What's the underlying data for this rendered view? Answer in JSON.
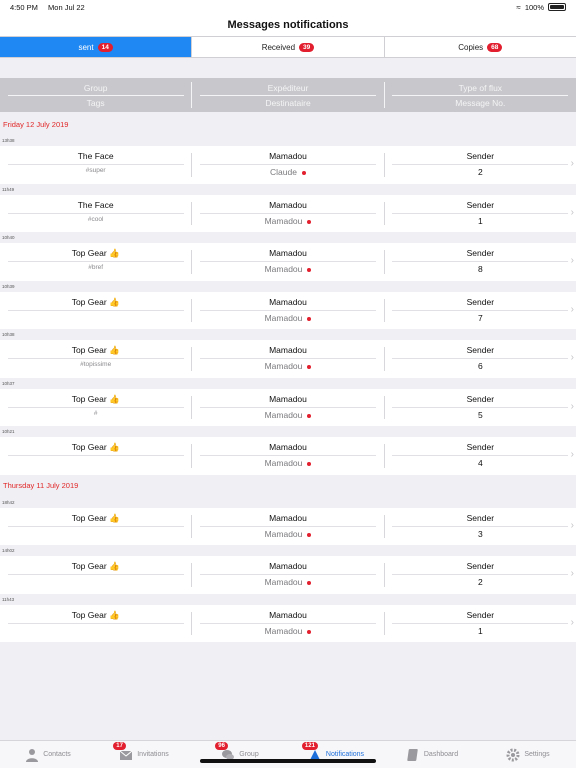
{
  "status": {
    "time": "4:50 PM",
    "date": "Mon Jul 22",
    "battery": "100%"
  },
  "title": "Messages notifications",
  "segments": [
    {
      "label": "sent",
      "count": "14"
    },
    {
      "label": "Received",
      "count": "39"
    },
    {
      "label": "Copies",
      "count": "68"
    }
  ],
  "header": {
    "col1_top": "Group",
    "col1_bottom": "Tags",
    "col2_top": "Expéditeur",
    "col2_bottom": "Destinataire",
    "col3_top": "Type of flux",
    "col3_bottom": "Message No."
  },
  "sections": [
    {
      "date": "Friday 12 July 2019",
      "rows": [
        {
          "time": "13h38",
          "group": "The Face",
          "tag": "#super",
          "sender": "Mamadou",
          "recipient": "Claude",
          "type": "Sender",
          "number": "2"
        },
        {
          "time": "11h49",
          "group": "The Face",
          "tag": "#cool",
          "sender": "Mamadou",
          "recipient": "Mamadou",
          "type": "Sender",
          "number": "1"
        },
        {
          "time": "10h40",
          "group": "Top Gear 👍",
          "tag": "#bref",
          "sender": "Mamadou",
          "recipient": "Mamadou",
          "type": "Sender",
          "number": "8"
        },
        {
          "time": "10h39",
          "group": "Top Gear 👍",
          "tag": "",
          "sender": "Mamadou",
          "recipient": "Mamadou",
          "type": "Sender",
          "number": "7"
        },
        {
          "time": "10h38",
          "group": "Top Gear 👍",
          "tag": "#topissime",
          "sender": "Mamadou",
          "recipient": "Mamadou",
          "type": "Sender",
          "number": "6"
        },
        {
          "time": "10h37",
          "group": "Top Gear 👍",
          "tag": "#",
          "sender": "Mamadou",
          "recipient": "Mamadou",
          "type": "Sender",
          "number": "5"
        },
        {
          "time": "10h21",
          "group": "Top Gear 👍",
          "tag": "",
          "sender": "Mamadou",
          "recipient": "Mamadou",
          "type": "Sender",
          "number": "4"
        }
      ]
    },
    {
      "date": "Thursday 11 July 2019",
      "rows": [
        {
          "time": "18h42",
          "group": "Top Gear 👍",
          "tag": "",
          "sender": "Mamadou",
          "recipient": "Mamadou",
          "type": "Sender",
          "number": "3"
        },
        {
          "time": "14h02",
          "group": "Top Gear 👍",
          "tag": "",
          "sender": "Mamadou",
          "recipient": "Mamadou",
          "type": "Sender",
          "number": "2"
        },
        {
          "time": "11h43",
          "group": "Top Gear 👍",
          "tag": "",
          "sender": "Mamadou",
          "recipient": "Mamadou",
          "type": "Sender",
          "number": "1"
        }
      ]
    }
  ],
  "tabs": [
    {
      "label": "Contacts",
      "badge": "",
      "icon": "person-icon"
    },
    {
      "label": "Invitations",
      "badge": "17",
      "icon": "envelope-icon"
    },
    {
      "label": "Group",
      "badge": "96",
      "icon": "chat-bubbles-icon"
    },
    {
      "label": "Notifications",
      "badge": "121",
      "icon": "notifications-icon"
    },
    {
      "label": "Dashboard",
      "badge": "",
      "icon": "book-icon"
    },
    {
      "label": "Settings",
      "badge": "",
      "icon": "gear-icon"
    }
  ],
  "colors": {
    "accent": "#1f88f3",
    "badge": "#e21f2e",
    "date": "#e12828"
  }
}
